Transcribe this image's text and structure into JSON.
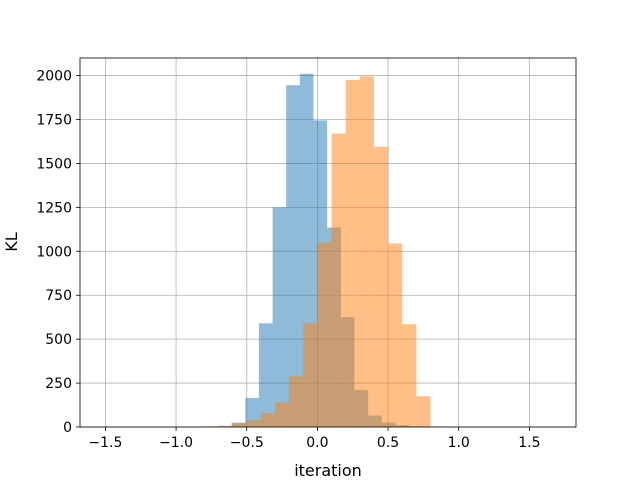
{
  "chart_data": {
    "type": "bar",
    "xlabel": "iteration",
    "ylabel": "KL",
    "xlim": [
      -1.68,
      1.83
    ],
    "ylim": [
      0,
      2100
    ],
    "xticks": [
      -1.5,
      -1.0,
      -0.5,
      0.0,
      0.5,
      1.0,
      1.5
    ],
    "xtick_labels": [
      "−1.5",
      "−1.0",
      "−0.5",
      "0.0",
      "0.5",
      "1.0",
      "1.5"
    ],
    "yticks": [
      0,
      250,
      500,
      750,
      1000,
      1250,
      1500,
      1750,
      2000
    ],
    "ytick_labels": [
      "0",
      "250",
      "500",
      "750",
      "1000",
      "1250",
      "1500",
      "1750",
      "2000"
    ],
    "grid": true,
    "legend": "none",
    "bin_width": 0.0966,
    "series": [
      {
        "color": "#1f77b4",
        "alpha": 0.5,
        "bin_edges": [
          -0.607,
          -0.51,
          -0.414,
          -0.317,
          -0.221,
          -0.124,
          -0.028,
          0.069,
          0.166,
          0.262,
          0.359,
          0.455,
          0.552,
          0.648,
          0.745,
          0.841,
          0.938,
          1.034
        ],
        "counts": [
          25,
          165,
          590,
          1250,
          1945,
          2010,
          1745,
          1135,
          625,
          210,
          65,
          25,
          10,
          4,
          3,
          2,
          1
        ]
      },
      {
        "color": "#ff7f0e",
        "alpha": 0.5,
        "bin_edges": [
          -0.9,
          -0.8,
          -0.7,
          -0.6,
          -0.5,
          -0.4,
          -0.3,
          -0.2,
          -0.1,
          0.0,
          0.1,
          0.2,
          0.3,
          0.4,
          0.5,
          0.6,
          0.7,
          0.8
        ],
        "counts": [
          2,
          4,
          8,
          20,
          40,
          80,
          140,
          290,
          590,
          1050,
          1670,
          1975,
          1995,
          1595,
          1045,
          585,
          175
        ]
      }
    ]
  }
}
